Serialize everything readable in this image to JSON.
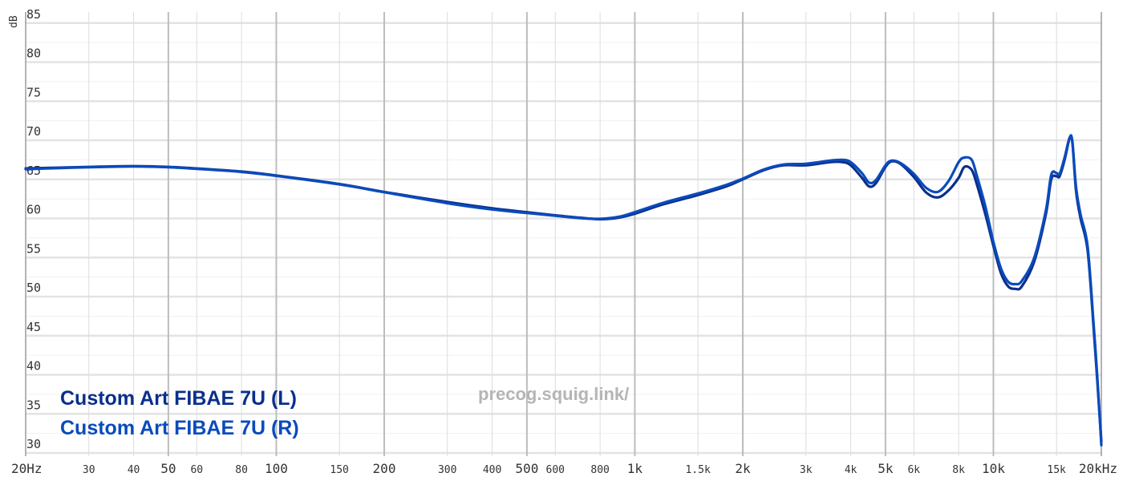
{
  "chart_data": {
    "type": "line",
    "title": "",
    "xlabel": "",
    "ylabel": "dB",
    "x_scale": "log",
    "xlim": [
      20,
      20000
    ],
    "ylim": [
      30,
      86
    ],
    "y_ticks": [
      30,
      35,
      40,
      45,
      50,
      55,
      60,
      65,
      70,
      75,
      80,
      85
    ],
    "x_ticks": [
      {
        "value": 20,
        "label": "20Hz",
        "major": true
      },
      {
        "value": 30,
        "label": "30",
        "major": false
      },
      {
        "value": 40,
        "label": "40",
        "major": false
      },
      {
        "value": 50,
        "label": "50",
        "major": true
      },
      {
        "value": 60,
        "label": "60",
        "major": false
      },
      {
        "value": 80,
        "label": "80",
        "major": false
      },
      {
        "value": 100,
        "label": "100",
        "major": true
      },
      {
        "value": 150,
        "label": "150",
        "major": false
      },
      {
        "value": 200,
        "label": "200",
        "major": true
      },
      {
        "value": 300,
        "label": "300",
        "major": false
      },
      {
        "value": 400,
        "label": "400",
        "major": false
      },
      {
        "value": 500,
        "label": "500",
        "major": true
      },
      {
        "value": 600,
        "label": "600",
        "major": false
      },
      {
        "value": 800,
        "label": "800",
        "major": false
      },
      {
        "value": 1000,
        "label": "1k",
        "major": true
      },
      {
        "value": 1500,
        "label": "1.5k",
        "major": false
      },
      {
        "value": 2000,
        "label": "2k",
        "major": true
      },
      {
        "value": 3000,
        "label": "3k",
        "major": false
      },
      {
        "value": 4000,
        "label": "4k",
        "major": false
      },
      {
        "value": 5000,
        "label": "5k",
        "major": true
      },
      {
        "value": 6000,
        "label": "6k",
        "major": false
      },
      {
        "value": 8000,
        "label": "8k",
        "major": false
      },
      {
        "value": 10000,
        "label": "10k",
        "major": true
      },
      {
        "value": 15000,
        "label": "15k",
        "major": false
      },
      {
        "value": 20000,
        "label": "20kHz",
        "major": true
      }
    ],
    "grid": true,
    "legend_position": "bottom-left",
    "series": [
      {
        "name": "Custom Art FIBAE 7U (L)",
        "color": "#0a2f8c",
        "points": [
          [
            20,
            66.4
          ],
          [
            25,
            66.5
          ],
          [
            30,
            66.6
          ],
          [
            40,
            66.7
          ],
          [
            50,
            66.6
          ],
          [
            60,
            66.4
          ],
          [
            80,
            66.0
          ],
          [
            100,
            65.5
          ],
          [
            150,
            64.4
          ],
          [
            200,
            63.4
          ],
          [
            300,
            62.1
          ],
          [
            400,
            61.3
          ],
          [
            500,
            60.8
          ],
          [
            600,
            60.4
          ],
          [
            700,
            60.1
          ],
          [
            800,
            59.9
          ],
          [
            900,
            60.1
          ],
          [
            1000,
            60.6
          ],
          [
            1200,
            61.8
          ],
          [
            1500,
            63.0
          ],
          [
            1800,
            64.1
          ],
          [
            2000,
            65.0
          ],
          [
            2300,
            66.2
          ],
          [
            2600,
            66.8
          ],
          [
            3000,
            66.8
          ],
          [
            3500,
            67.2
          ],
          [
            3800,
            67.2
          ],
          [
            4000,
            66.8
          ],
          [
            4300,
            65.2
          ],
          [
            4500,
            64.1
          ],
          [
            4700,
            64.5
          ],
          [
            5000,
            66.6
          ],
          [
            5200,
            67.3
          ],
          [
            5500,
            67.0
          ],
          [
            6000,
            65.3
          ],
          [
            6500,
            63.3
          ],
          [
            7000,
            62.7
          ],
          [
            7500,
            63.6
          ],
          [
            8000,
            65.2
          ],
          [
            8300,
            66.6
          ],
          [
            8700,
            66.2
          ],
          [
            9000,
            64.3
          ],
          [
            9500,
            60.5
          ],
          [
            10000,
            56.5
          ],
          [
            10500,
            53.0
          ],
          [
            11000,
            51.3
          ],
          [
            11500,
            51.0
          ],
          [
            12000,
            51.3
          ],
          [
            13000,
            54.5
          ],
          [
            14000,
            60.5
          ],
          [
            14500,
            65.0
          ],
          [
            15000,
            65.4
          ],
          [
            15300,
            65.4
          ],
          [
            15800,
            67.5
          ],
          [
            16300,
            70.2
          ],
          [
            16600,
            69.8
          ],
          [
            17000,
            63.5
          ],
          [
            17500,
            60.0
          ],
          [
            18300,
            56.0
          ],
          [
            19000,
            46.5
          ],
          [
            19500,
            39.0
          ],
          [
            20000,
            31.5
          ]
        ]
      },
      {
        "name": "Custom Art FIBAE 7U (R)",
        "color": "#0a4bbd",
        "points": [
          [
            20,
            66.3
          ],
          [
            25,
            66.45
          ],
          [
            30,
            66.55
          ],
          [
            40,
            66.65
          ],
          [
            50,
            66.55
          ],
          [
            60,
            66.35
          ],
          [
            80,
            65.95
          ],
          [
            100,
            65.45
          ],
          [
            150,
            64.35
          ],
          [
            200,
            63.35
          ],
          [
            300,
            61.95
          ],
          [
            400,
            61.15
          ],
          [
            500,
            60.7
          ],
          [
            600,
            60.35
          ],
          [
            700,
            60.05
          ],
          [
            800,
            59.95
          ],
          [
            900,
            60.2
          ],
          [
            1000,
            60.8
          ],
          [
            1200,
            62.0
          ],
          [
            1500,
            63.2
          ],
          [
            1800,
            64.3
          ],
          [
            2000,
            65.1
          ],
          [
            2300,
            66.3
          ],
          [
            2600,
            66.9
          ],
          [
            3000,
            67.0
          ],
          [
            3500,
            67.4
          ],
          [
            3800,
            67.5
          ],
          [
            4000,
            67.2
          ],
          [
            4300,
            65.8
          ],
          [
            4500,
            64.6
          ],
          [
            4700,
            64.9
          ],
          [
            5000,
            66.8
          ],
          [
            5200,
            67.4
          ],
          [
            5500,
            67.1
          ],
          [
            6000,
            65.7
          ],
          [
            6500,
            63.9
          ],
          [
            7000,
            63.4
          ],
          [
            7500,
            64.8
          ],
          [
            8000,
            67.2
          ],
          [
            8300,
            67.8
          ],
          [
            8700,
            67.5
          ],
          [
            9000,
            65.4
          ],
          [
            9500,
            61.5
          ],
          [
            10000,
            57.0
          ],
          [
            10500,
            53.6
          ],
          [
            11000,
            51.9
          ],
          [
            11500,
            51.6
          ],
          [
            12000,
            52.0
          ],
          [
            13000,
            55.0
          ],
          [
            14000,
            61.0
          ],
          [
            14500,
            65.6
          ],
          [
            15000,
            65.8
          ],
          [
            15300,
            65.7
          ],
          [
            15800,
            67.8
          ],
          [
            16300,
            70.3
          ],
          [
            16600,
            69.9
          ],
          [
            17000,
            64.0
          ],
          [
            17500,
            60.5
          ],
          [
            18300,
            56.5
          ],
          [
            19000,
            47.0
          ],
          [
            19500,
            39.5
          ],
          [
            20000,
            31.0
          ]
        ]
      }
    ]
  },
  "watermark": "precog.squig.link/"
}
